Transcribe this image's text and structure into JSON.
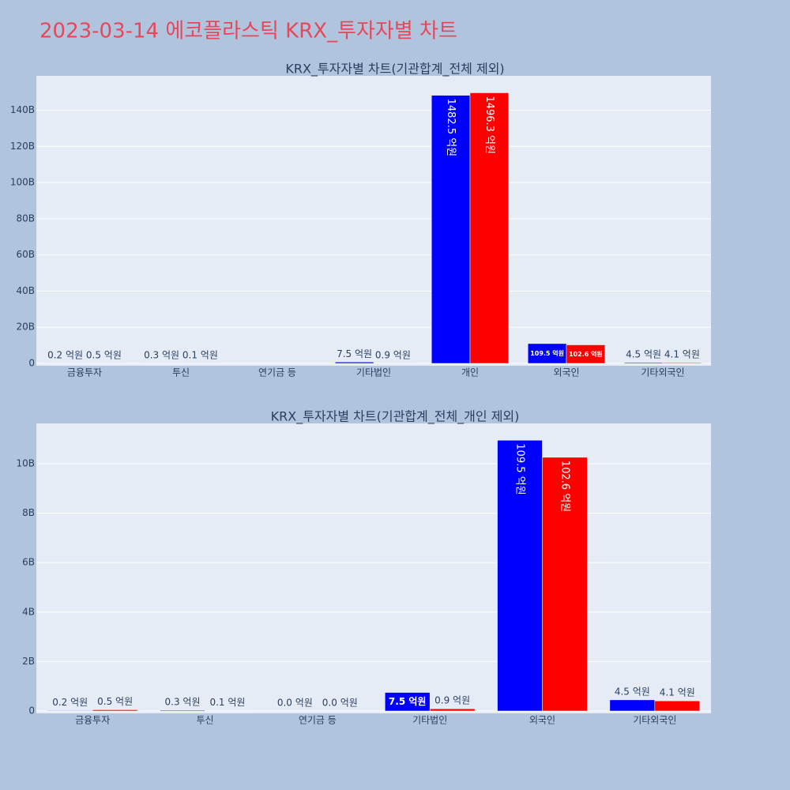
{
  "title": "2023-03-14 에코플라스틱 KRX_투자자별 차트",
  "chart_data": [
    {
      "type": "bar",
      "title": "KRX_투자자별 차트(기관합계_전체 제외)",
      "categories": [
        "금융투자",
        "투신",
        "연기금 등",
        "기타법인",
        "개인",
        "외국인",
        "기타외국인"
      ],
      "series": [
        {
          "color": "#0000ff",
          "values": [
            20000000,
            30000000,
            0,
            750000000,
            148250000000,
            10950000000,
            450000000
          ],
          "value_labels": [
            "0.2 억원",
            "0.3 억원",
            null,
            "7.5 억원",
            "1482.5 억원",
            "109.5 억원",
            "4.5 억원"
          ]
        },
        {
          "color": "#ff0000",
          "values": [
            50000000,
            10000000,
            0,
            90000000,
            149630000000,
            10260000000,
            410000000
          ],
          "value_labels": [
            "0.5 억원",
            "0.1 억원",
            null,
            "0.9 억원",
            "1496.3 억원",
            "102.6 억원",
            "4.1 억원"
          ]
        }
      ],
      "ylim": [
        0,
        159000000000
      ],
      "yticks": [
        0,
        {
          "value": 20000000000,
          "label": "20B"
        },
        {
          "value": 40000000000,
          "label": "40B"
        },
        {
          "value": 60000000000,
          "label": "60B"
        },
        {
          "value": 80000000000,
          "label": "80B"
        },
        {
          "value": 100000000000,
          "label": "100B"
        },
        {
          "value": 120000000000,
          "label": "120B"
        },
        {
          "value": 140000000000,
          "label": "140B"
        }
      ],
      "grid": true
    },
    {
      "type": "bar",
      "title": "KRX_투자자별 차트(기관합계_전체_개인 제외)",
      "categories": [
        "금융투자",
        "투신",
        "연기금 등",
        "기타법인",
        "외국인",
        "기타외국인"
      ],
      "series": [
        {
          "color": "#0000ff",
          "values": [
            20000000,
            30000000,
            0,
            750000000,
            10950000000,
            450000000
          ],
          "value_labels": [
            "0.2 억원",
            "0.3 억원",
            "0.0 억원",
            "7.5 억원",
            "109.5 억원",
            "4.5 억원"
          ]
        },
        {
          "color": "#ff0000",
          "values": [
            50000000,
            10000000,
            0,
            90000000,
            10260000000,
            410000000
          ],
          "value_labels": [
            "0.5 억원",
            "0.1 억원",
            "0.0 억원",
            "0.9 억원",
            "102.6 억원",
            "4.1 억원"
          ]
        }
      ],
      "ylim": [
        0,
        11630000000
      ],
      "yticks": [
        0,
        {
          "value": 2000000000,
          "label": "2B"
        },
        {
          "value": 4000000000,
          "label": "4B"
        },
        {
          "value": 6000000000,
          "label": "6B"
        },
        {
          "value": 8000000000,
          "label": "8B"
        },
        {
          "value": 10000000000,
          "label": "10B"
        }
      ],
      "grid": true
    }
  ]
}
